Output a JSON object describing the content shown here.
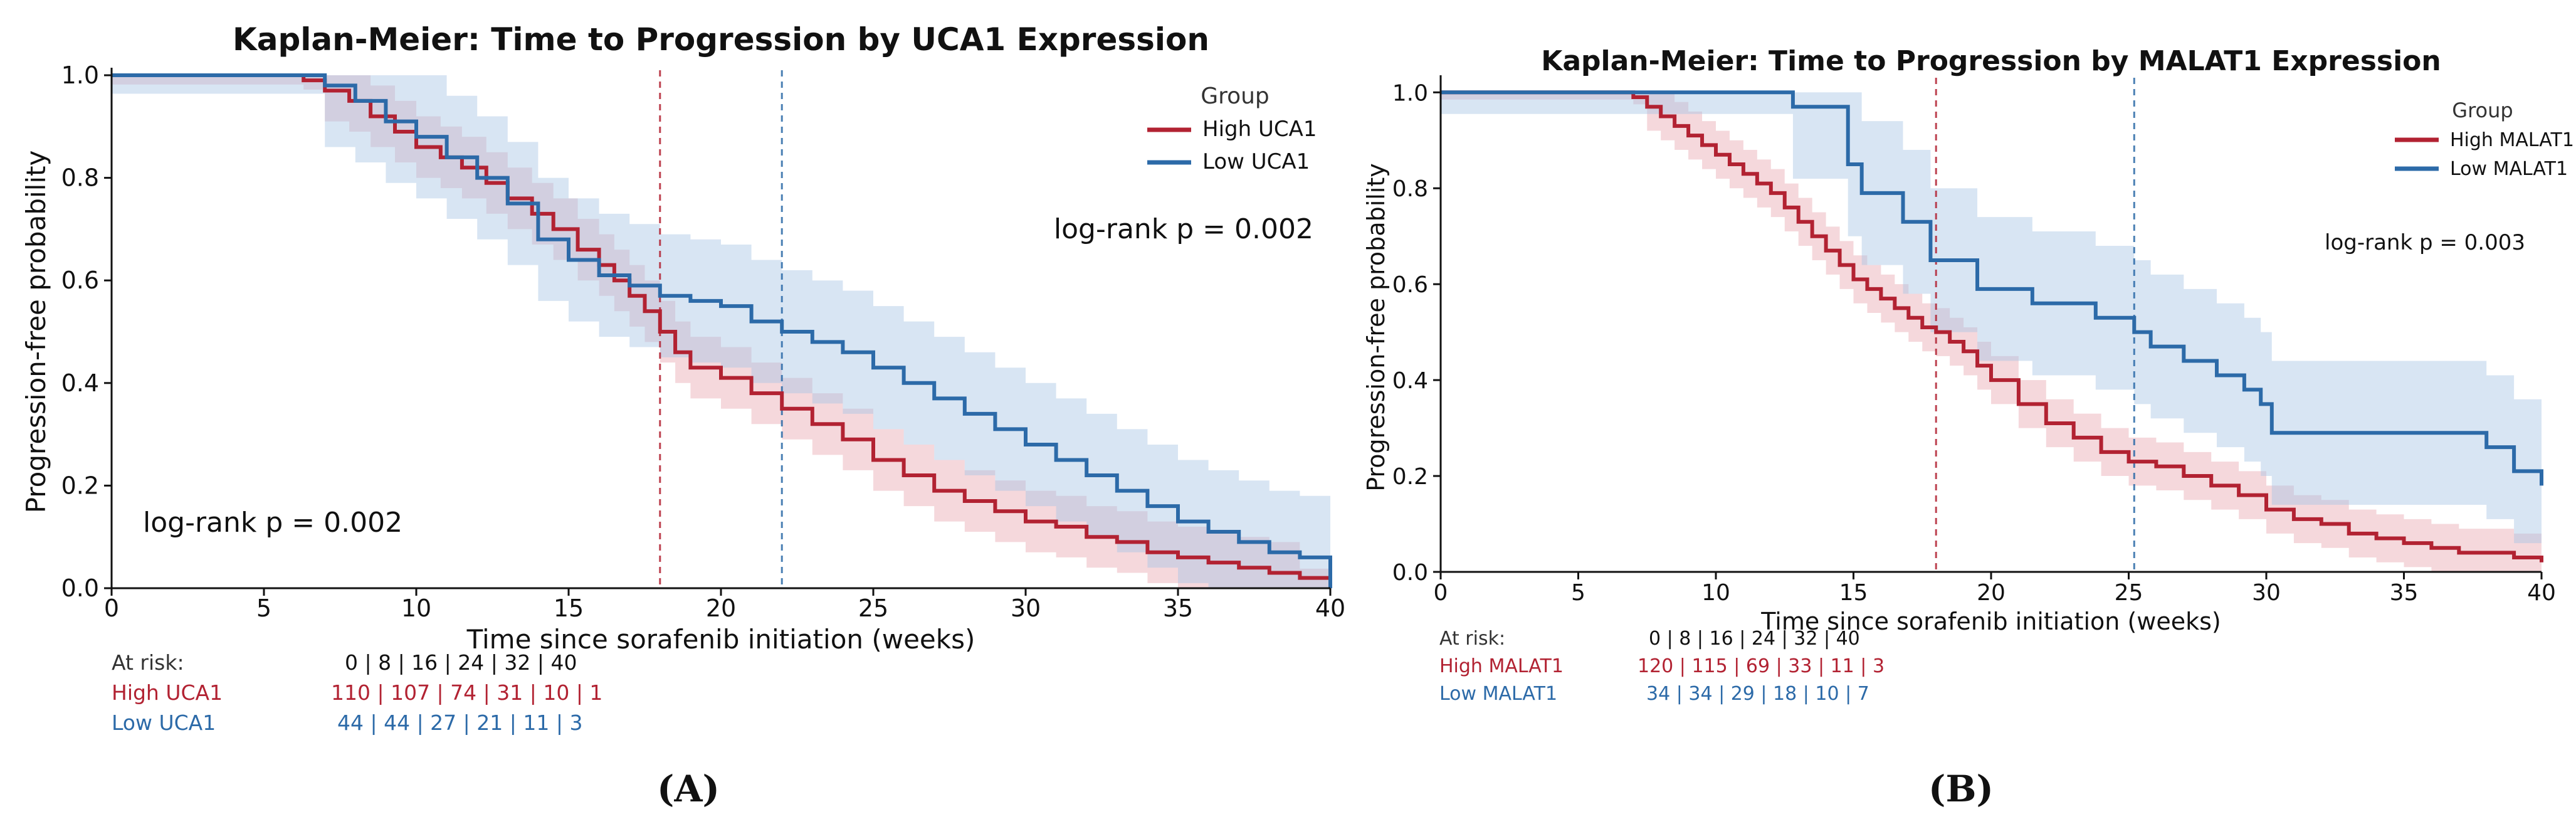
{
  "colors": {
    "high": "#b22232",
    "high_band": "#e9a8b1",
    "low": "#2c6aa8",
    "low_band": "#a9c6e4",
    "axis": "#111111",
    "text": "#111111",
    "gray_text": "#333333"
  },
  "chart_data": [
    {
      "type": "line",
      "panel_label": "(A)",
      "title": "Kaplan-Meier: Time to Progression by UCA1 Expression",
      "xlabel": "Time since sorafenib initiation (weeks)",
      "ylabel": "Progression-free probability",
      "xlim": [
        0,
        40
      ],
      "ylim": [
        0,
        1
      ],
      "xticks": [
        0,
        5,
        10,
        15,
        20,
        25,
        30,
        35,
        40
      ],
      "yticks": [
        0.0,
        0.2,
        0.4,
        0.6,
        0.8,
        1.0
      ],
      "ytick_labels": [
        "0.0",
        "0.2",
        "0.4",
        "0.6",
        "0.8",
        "1.0"
      ],
      "legend": {
        "title": "Group",
        "position": "top-right"
      },
      "annotations": [
        {
          "text": "log-rank p = 0.002",
          "position": "right"
        },
        {
          "text": "log-rank p = 0.002",
          "position": "bottom-left"
        }
      ],
      "median_lines": [
        {
          "series": "High UCA1",
          "x": 18
        },
        {
          "series": "Low UCA1",
          "x": 22
        }
      ],
      "series": [
        {
          "name": "High UCA1",
          "color_key": "high",
          "x": [
            0,
            6.3,
            7.0,
            7.8,
            8.5,
            9.3,
            10.0,
            10.8,
            11.5,
            12.3,
            13.0,
            13.8,
            14.5,
            15.3,
            16.0,
            16.5,
            17.0,
            17.5,
            18.0,
            18.5,
            19.0,
            20.0,
            21.0,
            22.0,
            23.0,
            24.0,
            25.0,
            26.0,
            27.0,
            28.0,
            29.0,
            30.0,
            31.0,
            32.0,
            33.0,
            34.0,
            35.0,
            36.0,
            37.0,
            38.0,
            39.0,
            40.0
          ],
          "y": [
            1.0,
            0.99,
            0.97,
            0.95,
            0.92,
            0.89,
            0.86,
            0.84,
            0.82,
            0.79,
            0.76,
            0.73,
            0.7,
            0.66,
            0.63,
            0.6,
            0.57,
            0.54,
            0.5,
            0.46,
            0.43,
            0.41,
            0.38,
            0.35,
            0.32,
            0.29,
            0.25,
            0.22,
            0.19,
            0.17,
            0.15,
            0.13,
            0.12,
            0.1,
            0.09,
            0.07,
            0.06,
            0.05,
            0.04,
            0.03,
            0.02,
            0.01
          ],
          "ci_width": 0.06
        },
        {
          "name": "Low UCA1",
          "color_key": "low",
          "x": [
            0,
            6.0,
            7.0,
            8.0,
            9.0,
            10.0,
            11.0,
            12.0,
            13.0,
            14.0,
            15.0,
            16.0,
            17.0,
            18.0,
            19.0,
            20.0,
            21.0,
            22.0,
            23.0,
            24.0,
            25.0,
            26.0,
            27.0,
            28.0,
            29.0,
            30.0,
            31.0,
            32.0,
            33.0,
            34.0,
            35.0,
            36.0,
            37.0,
            38.0,
            39.0,
            40.0
          ],
          "y": [
            1.0,
            1.0,
            0.98,
            0.95,
            0.91,
            0.88,
            0.84,
            0.8,
            0.75,
            0.68,
            0.64,
            0.61,
            0.59,
            0.57,
            0.56,
            0.55,
            0.52,
            0.5,
            0.48,
            0.46,
            0.43,
            0.4,
            0.37,
            0.34,
            0.31,
            0.28,
            0.25,
            0.22,
            0.19,
            0.16,
            0.13,
            0.11,
            0.09,
            0.07,
            0.06,
            0.0
          ],
          "ci_width": 0.12
        }
      ],
      "at_risk": {
        "label": "At risk:",
        "times_label": "0 |   8 |  16 |  24 |  32 |  40",
        "rows": [
          {
            "name": "High UCA1",
            "color_key": "high",
            "values": "110 | 107 |  74 |  31 |  10 |   1"
          },
          {
            "name": "Low UCA1",
            "color_key": "low",
            "values": "44 |  44 |  27 |  21 |  11 |   3"
          }
        ]
      }
    },
    {
      "type": "line",
      "panel_label": "(B)",
      "title": "Kaplan-Meier: Time to Progression by MALAT1 Expression",
      "xlabel": "Time since sorafenib initiation (weeks)",
      "ylabel": "Progression-free probability",
      "xlim": [
        0,
        40
      ],
      "ylim": [
        0,
        1.02
      ],
      "xticks": [
        0,
        5,
        10,
        15,
        20,
        25,
        30,
        35,
        40
      ],
      "yticks": [
        0.0,
        0.2,
        0.4,
        0.6,
        0.8,
        1.0
      ],
      "ytick_labels": [
        "0.0",
        "0.2",
        "0.4",
        "0.6",
        "0.8",
        "1.0"
      ],
      "legend": {
        "title": "Group",
        "position": "top-right"
      },
      "annotations": [
        {
          "text": "log-rank p = 0.003",
          "position": "right"
        }
      ],
      "median_lines": [
        {
          "series": "High MALAT1",
          "x": 18
        },
        {
          "series": "Low MALAT1",
          "x": 25.2
        }
      ],
      "series": [
        {
          "name": "High MALAT1",
          "color_key": "high",
          "x": [
            0,
            7.0,
            7.5,
            8.0,
            8.5,
            9.0,
            9.5,
            10.0,
            10.5,
            11.0,
            11.5,
            12.0,
            12.5,
            13.0,
            13.5,
            14.0,
            14.5,
            15.0,
            15.5,
            16.0,
            16.5,
            17.0,
            17.5,
            18.0,
            18.5,
            19.0,
            19.5,
            20.0,
            21.0,
            22.0,
            23.0,
            24.0,
            25.0,
            26.0,
            27.0,
            28.0,
            29.0,
            30.0,
            31.0,
            32.0,
            33.0,
            34.0,
            35.0,
            36.0,
            37.0,
            38.0,
            39.0,
            40.0
          ],
          "y": [
            1.0,
            0.99,
            0.97,
            0.95,
            0.93,
            0.91,
            0.89,
            0.87,
            0.85,
            0.83,
            0.81,
            0.79,
            0.76,
            0.73,
            0.7,
            0.67,
            0.64,
            0.61,
            0.59,
            0.57,
            0.55,
            0.53,
            0.51,
            0.5,
            0.48,
            0.46,
            0.43,
            0.4,
            0.35,
            0.31,
            0.28,
            0.25,
            0.23,
            0.22,
            0.2,
            0.18,
            0.16,
            0.13,
            0.11,
            0.1,
            0.08,
            0.07,
            0.06,
            0.05,
            0.04,
            0.04,
            0.03,
            0.02
          ],
          "ci_width": 0.05
        },
        {
          "name": "Low MALAT1",
          "color_key": "low",
          "x": [
            0,
            12.8,
            14.8,
            15.3,
            16.8,
            17.8,
            19.5,
            21.5,
            23.8,
            25.2,
            25.8,
            27.0,
            28.2,
            29.2,
            29.8,
            30.2,
            38.0,
            39.0,
            40.0
          ],
          "y": [
            1.0,
            0.97,
            0.85,
            0.79,
            0.73,
            0.65,
            0.59,
            0.56,
            0.53,
            0.5,
            0.47,
            0.44,
            0.41,
            0.38,
            0.35,
            0.29,
            0.26,
            0.21,
            0.18
          ],
          "ci_width": 0.15
        }
      ],
      "at_risk": {
        "label": "At risk:",
        "times_label": "0 |   8 |  16 |  24 |  32 |  40",
        "rows": [
          {
            "name": "High MALAT1",
            "color_key": "high",
            "values": "120 | 115 |  69 |  33 |  11 |   3"
          },
          {
            "name": "Low MALAT1",
            "color_key": "low",
            "values": "34 |  34 |  29 |  18 |  10 |   7"
          }
        ]
      }
    }
  ]
}
